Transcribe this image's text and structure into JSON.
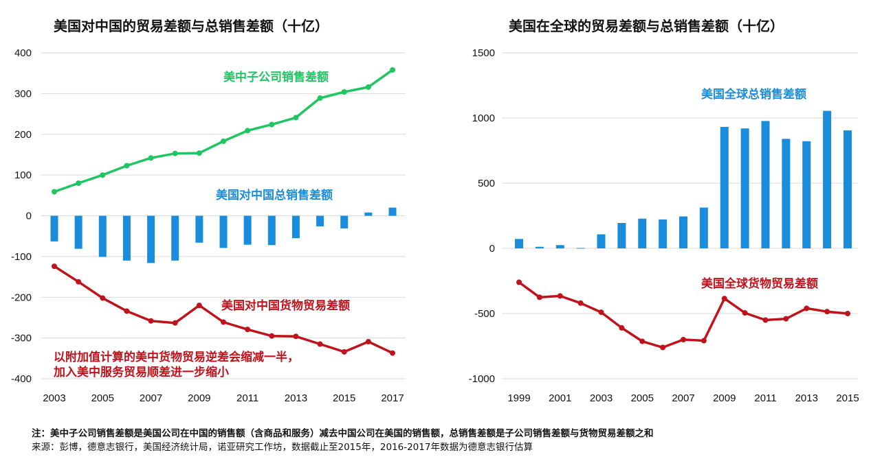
{
  "colors": {
    "green": "#1fc561",
    "blue": "#1a8cdc",
    "red": "#c0121a",
    "grid": "#d9d9d9"
  },
  "footnotes": {
    "note": "注：美中子公司销售差额是美国公司在中国的销售额（含商品和服务）减去中国公司在美国的销售额，总销售差额是子公司销售差额与货物贸易差额之和",
    "source": "来源：彭博，德意志银行，美国经济统计局，诺亚研究工作坊，数据截止至2015年，2016-2017年数据为德意志银行估算"
  },
  "chart_data": [
    {
      "type": "bar+line",
      "title": "美国对中国的贸易差额与总销售差额（十亿）",
      "xlabel": "",
      "ylabel": "",
      "x": [
        2003,
        2004,
        2005,
        2006,
        2007,
        2008,
        2009,
        2010,
        2011,
        2012,
        2013,
        2014,
        2015,
        2016,
        2017
      ],
      "x_ticks": [
        "2003",
        "2005",
        "2007",
        "2009",
        "2011",
        "2013",
        "2015",
        "2017"
      ],
      "y_ticks": [
        "400",
        "300",
        "200",
        "100",
        "0",
        "-100",
        "-200",
        "-300",
        "-400"
      ],
      "ylim": [
        -400,
        400
      ],
      "grid": "horizontal",
      "series": [
        {
          "name": "美中子公司销售差额",
          "kind": "line",
          "color": "#1fc561",
          "values": [
            59,
            80,
            100,
            123,
            142,
            153,
            154,
            183,
            209,
            224,
            241,
            289,
            304,
            316,
            358
          ]
        },
        {
          "name": "美国对中国总销售差额",
          "kind": "bar",
          "color": "#1a8cdc",
          "values": [
            -63,
            -81,
            -101,
            -110,
            -116,
            -110,
            -66,
            -79,
            -71,
            -72,
            -55,
            -26,
            -31,
            8,
            20
          ]
        },
        {
          "name": "美国对中国货物贸易差额",
          "kind": "line",
          "color": "#c0121a",
          "values": [
            -124,
            -162,
            -202,
            -234,
            -258,
            -263,
            -220,
            -261,
            -279,
            -295,
            -296,
            -315,
            -334,
            -309,
            -337
          ]
        }
      ],
      "annotation": [
        "以附加值计算的美中货物贸易逆差会缩减一半，",
        "加入美中服务贸易顺差进一步缩小"
      ]
    },
    {
      "type": "bar+line",
      "title": "美国在全球的贸易差额与总销售差额（十亿）",
      "xlabel": "",
      "ylabel": "",
      "x": [
        1999,
        2000,
        2001,
        2002,
        2003,
        2004,
        2005,
        2006,
        2007,
        2008,
        2009,
        2010,
        2011,
        2012,
        2013,
        2014,
        2015
      ],
      "x_ticks": [
        "1999",
        "2001",
        "2003",
        "2005",
        "2007",
        "2009",
        "2011",
        "2013",
        "2015"
      ],
      "y_ticks": [
        "1500",
        "1000",
        "500",
        "0",
        "-500",
        "-1000"
      ],
      "ylim": [
        -1000,
        1500
      ],
      "grid": "horizontal",
      "series": [
        {
          "name": "美国全球总销售差额",
          "kind": "bar",
          "color": "#1a8cdc",
          "values": [
            72,
            12,
            25,
            3,
            108,
            195,
            228,
            222,
            245,
            313,
            932,
            920,
            977,
            840,
            822,
            1055,
            905
          ]
        },
        {
          "name": "美国全球货物贸易差额",
          "kind": "line",
          "color": "#c0121a",
          "values": [
            -260,
            -375,
            -365,
            -420,
            -490,
            -610,
            -713,
            -760,
            -700,
            -708,
            -385,
            -495,
            -550,
            -540,
            -460,
            -485,
            -500
          ]
        }
      ]
    }
  ]
}
